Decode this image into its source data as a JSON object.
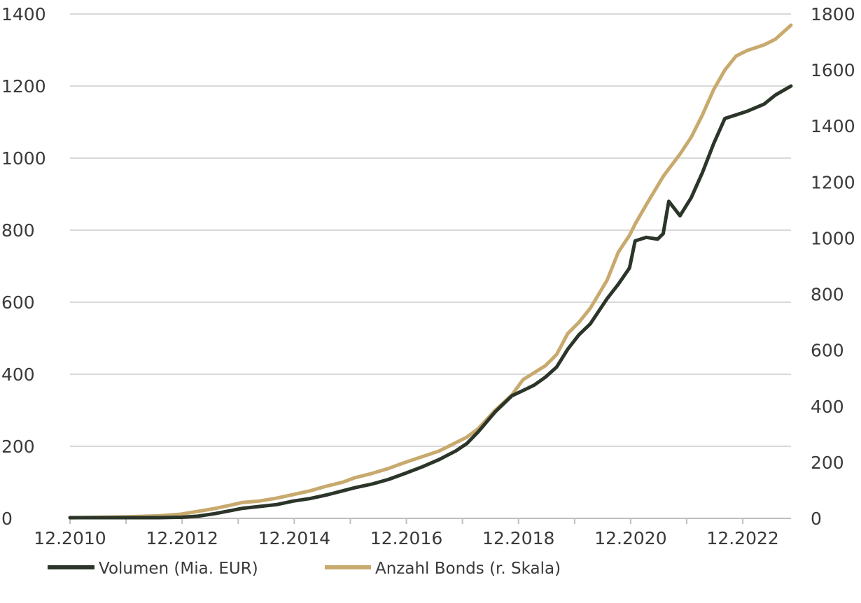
{
  "chart_data": {
    "type": "line",
    "title": "",
    "xlabel": "",
    "ylabel": "",
    "y2label": "",
    "grid": true,
    "legend_position": "bottom-left",
    "x_ticks": [
      "12.2010",
      "12.2012",
      "12.2014",
      "12.2016",
      "12.2018",
      "12.2020",
      "12.2022"
    ],
    "x_range": [
      "12.2010",
      "12.2022+"
    ],
    "x_range_years": [
      2010.92,
      2023.78
    ],
    "y_left": {
      "range": [
        0,
        1400
      ],
      "ticks": [
        0,
        200,
        400,
        600,
        800,
        1000,
        1200,
        1400
      ]
    },
    "y_right": {
      "range": [
        0,
        1800
      ],
      "ticks": [
        0,
        200,
        400,
        600,
        800,
        1000,
        1200,
        1400,
        1600,
        1800
      ]
    },
    "series": [
      {
        "name": "Volumen (Mia. EUR)",
        "axis": "left",
        "color": "#2b3529",
        "points": [
          [
            2010.92,
            2
          ],
          [
            2011.5,
            2
          ],
          [
            2012.0,
            2
          ],
          [
            2012.5,
            2
          ],
          [
            2012.9,
            3
          ],
          [
            2013.2,
            6
          ],
          [
            2013.5,
            13
          ],
          [
            2013.8,
            22
          ],
          [
            2014.0,
            28
          ],
          [
            2014.3,
            33
          ],
          [
            2014.6,
            38
          ],
          [
            2014.9,
            48
          ],
          [
            2015.2,
            55
          ],
          [
            2015.5,
            65
          ],
          [
            2015.8,
            77
          ],
          [
            2016.0,
            85
          ],
          [
            2016.3,
            95
          ],
          [
            2016.6,
            108
          ],
          [
            2016.9,
            125
          ],
          [
            2017.2,
            143
          ],
          [
            2017.5,
            163
          ],
          [
            2017.8,
            187
          ],
          [
            2018.0,
            208
          ],
          [
            2018.2,
            240
          ],
          [
            2018.5,
            295
          ],
          [
            2018.8,
            340
          ],
          [
            2019.0,
            355
          ],
          [
            2019.2,
            370
          ],
          [
            2019.4,
            392
          ],
          [
            2019.6,
            420
          ],
          [
            2019.8,
            470
          ],
          [
            2020.0,
            510
          ],
          [
            2020.2,
            540
          ],
          [
            2020.5,
            610
          ],
          [
            2020.7,
            650
          ],
          [
            2020.9,
            695
          ],
          [
            2021.0,
            770
          ],
          [
            2021.2,
            780
          ],
          [
            2021.4,
            775
          ],
          [
            2021.5,
            790
          ],
          [
            2021.6,
            880
          ],
          [
            2021.8,
            840
          ],
          [
            2022.0,
            890
          ],
          [
            2022.2,
            960
          ],
          [
            2022.4,
            1040
          ],
          [
            2022.6,
            1110
          ],
          [
            2022.8,
            1120
          ],
          [
            2023.0,
            1130
          ],
          [
            2023.3,
            1150
          ],
          [
            2023.5,
            1175
          ],
          [
            2023.78,
            1200
          ]
        ]
      },
      {
        "name": "Anzahl Bonds (r. Skala)",
        "axis": "right",
        "color": "#c8aa6e",
        "points": [
          [
            2010.92,
            2
          ],
          [
            2011.5,
            4
          ],
          [
            2012.0,
            6
          ],
          [
            2012.5,
            9
          ],
          [
            2012.9,
            15
          ],
          [
            2013.2,
            25
          ],
          [
            2013.5,
            35
          ],
          [
            2013.8,
            48
          ],
          [
            2014.0,
            57
          ],
          [
            2014.3,
            62
          ],
          [
            2014.6,
            72
          ],
          [
            2014.9,
            85
          ],
          [
            2015.2,
            98
          ],
          [
            2015.5,
            115
          ],
          [
            2015.8,
            130
          ],
          [
            2016.0,
            145
          ],
          [
            2016.3,
            160
          ],
          [
            2016.6,
            178
          ],
          [
            2016.9,
            200
          ],
          [
            2017.2,
            220
          ],
          [
            2017.5,
            240
          ],
          [
            2017.8,
            270
          ],
          [
            2018.0,
            290
          ],
          [
            2018.2,
            320
          ],
          [
            2018.5,
            385
          ],
          [
            2018.8,
            440
          ],
          [
            2019.0,
            495
          ],
          [
            2019.2,
            520
          ],
          [
            2019.4,
            545
          ],
          [
            2019.6,
            585
          ],
          [
            2019.8,
            660
          ],
          [
            2020.0,
            700
          ],
          [
            2020.2,
            750
          ],
          [
            2020.5,
            850
          ],
          [
            2020.7,
            950
          ],
          [
            2020.9,
            1010
          ],
          [
            2021.0,
            1050
          ],
          [
            2021.2,
            1120
          ],
          [
            2021.5,
            1220
          ],
          [
            2021.8,
            1300
          ],
          [
            2022.0,
            1360
          ],
          [
            2022.2,
            1440
          ],
          [
            2022.4,
            1530
          ],
          [
            2022.6,
            1600
          ],
          [
            2022.8,
            1650
          ],
          [
            2023.0,
            1670
          ],
          [
            2023.3,
            1690
          ],
          [
            2023.5,
            1710
          ],
          [
            2023.78,
            1760
          ]
        ]
      }
    ]
  }
}
